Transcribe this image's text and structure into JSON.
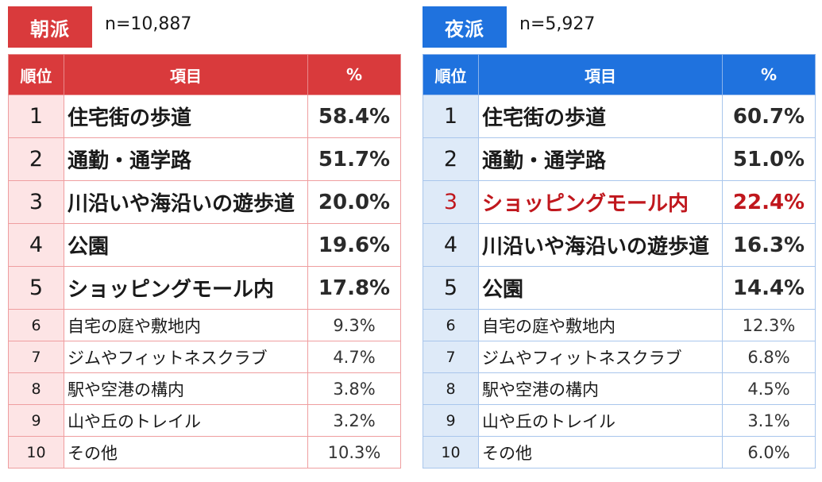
{
  "morning": {
    "label": "朝派",
    "n": "n=10,887",
    "headers": {
      "rank": "順位",
      "item": "項目",
      "pct": "%"
    },
    "rows": [
      {
        "rank": "1",
        "item": "住宅街の歩道",
        "pct": "58.4%"
      },
      {
        "rank": "2",
        "item": "通勤・通学路",
        "pct": "51.7%"
      },
      {
        "rank": "3",
        "item": "川沿いや海沿いの遊歩道",
        "pct": "20.0%"
      },
      {
        "rank": "4",
        "item": "公園",
        "pct": "19.6%"
      },
      {
        "rank": "5",
        "item": "ショッピングモール内",
        "pct": "17.8%"
      },
      {
        "rank": "6",
        "item": "自宅の庭や敷地内",
        "pct": "9.3%"
      },
      {
        "rank": "7",
        "item": "ジムやフィットネスクラブ",
        "pct": "4.7%"
      },
      {
        "rank": "8",
        "item": "駅や空港の構内",
        "pct": "3.8%"
      },
      {
        "rank": "9",
        "item": "山や丘のトレイル",
        "pct": "3.2%"
      },
      {
        "rank": "10",
        "item": "その他",
        "pct": "10.3%"
      }
    ]
  },
  "night": {
    "label": "夜派",
    "n": "n=5,927",
    "headers": {
      "rank": "順位",
      "item": "項目",
      "pct": "%"
    },
    "rows": [
      {
        "rank": "1",
        "item": "住宅街の歩道",
        "pct": "60.7%"
      },
      {
        "rank": "2",
        "item": "通勤・通学路",
        "pct": "51.0%"
      },
      {
        "rank": "3",
        "item": "ショッピングモール内",
        "pct": "22.4%"
      },
      {
        "rank": "4",
        "item": "川沿いや海沿いの遊歩道",
        "pct": "16.3%"
      },
      {
        "rank": "5",
        "item": "公園",
        "pct": "14.4%"
      },
      {
        "rank": "6",
        "item": "自宅の庭や敷地内",
        "pct": "12.3%"
      },
      {
        "rank": "7",
        "item": "ジムやフィットネスクラブ",
        "pct": "6.8%"
      },
      {
        "rank": "8",
        "item": "駅や空港の構内",
        "pct": "4.5%"
      },
      {
        "rank": "9",
        "item": "山や丘のトレイル",
        "pct": "3.1%"
      },
      {
        "rank": "10",
        "item": "その他",
        "pct": "6.0%"
      }
    ]
  },
  "colors": {
    "morning_accent": "#d93a3c",
    "night_accent": "#1f72de",
    "highlight_text": "#c0171d"
  }
}
